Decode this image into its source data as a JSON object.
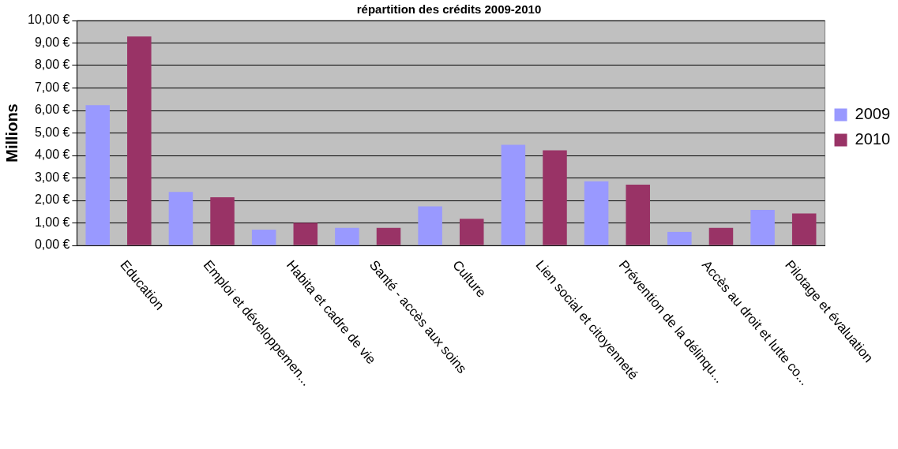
{
  "chart_data": {
    "type": "bar",
    "title": "répartition des crédits 2009-2010",
    "ylabel": "Millions",
    "categories": [
      "Education",
      "Emploi et développemen...",
      "Habita et cadre de vie",
      "Santé - accès aux soins",
      "Culture",
      "Lien social et citoyenneté",
      "Prévention de la délinqu...",
      "Accès au droit et lutte co...",
      "Pilotage et évaluation"
    ],
    "series": [
      {
        "name": "2009",
        "color": "#9999ff",
        "values": [
          6.24,
          2.38,
          0.7,
          0.78,
          1.74,
          4.47,
          2.85,
          0.6,
          1.58
        ]
      },
      {
        "name": "2010",
        "color": "#993366",
        "values": [
          9.29,
          2.14,
          1.0,
          0.78,
          1.18,
          4.23,
          2.7,
          0.78,
          1.42
        ]
      }
    ],
    "ylim": [
      0,
      10
    ],
    "yticks": [
      {
        "value": 0,
        "label": "0,00 €"
      },
      {
        "value": 1,
        "label": "1,00 €"
      },
      {
        "value": 2,
        "label": "2,00 €"
      },
      {
        "value": 3,
        "label": "3,00 €"
      },
      {
        "value": 4,
        "label": "4,00 €"
      },
      {
        "value": 5,
        "label": "5,00 €"
      },
      {
        "value": 6,
        "label": "6,00 €"
      },
      {
        "value": 7,
        "label": "7,00 €"
      },
      {
        "value": 8,
        "label": "8,00 €"
      },
      {
        "value": 9,
        "label": "9,00 €"
      },
      {
        "value": 10,
        "label": "10,00 €"
      }
    ],
    "grid": "y",
    "legend": "right"
  }
}
